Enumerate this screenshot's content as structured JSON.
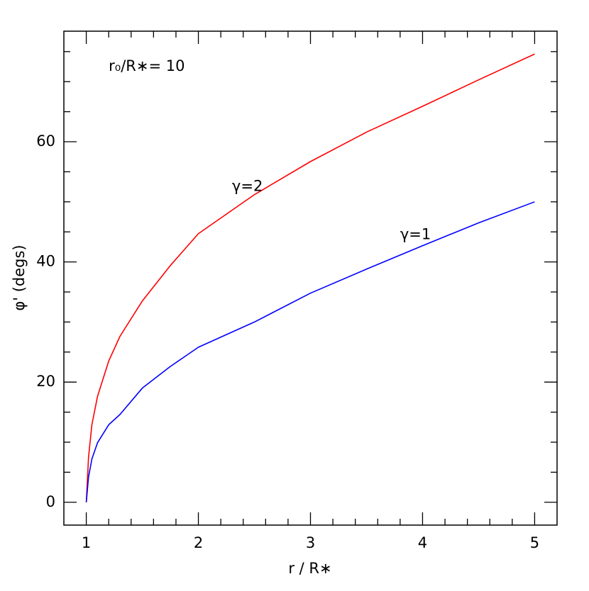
{
  "chart_data": {
    "type": "line",
    "x_label": "r / R∗",
    "y_label": "φ' (degs)",
    "annotations": [
      {
        "text": "r₀/R∗= 10",
        "x": 1.2,
        "y": 72.5,
        "color": "#000000"
      },
      {
        "text": "γ=2",
        "x": 2.3,
        "y": 52.5,
        "color": "#ff0000"
      },
      {
        "text": "γ=1",
        "x": 3.8,
        "y": 44.5,
        "color": "#0000ff"
      }
    ],
    "x": [
      1,
      1.02,
      1.05,
      1.1,
      1.2,
      1.3,
      1.5,
      1.75,
      2,
      2.5,
      3,
      3.5,
      4,
      4.5,
      5
    ],
    "series": [
      {
        "name": "γ=2",
        "color": "#ff0000",
        "values": [
          0,
          7.5,
          12.9,
          17.6,
          23.5,
          27.6,
          33.5,
          39.4,
          44.7,
          51.2,
          56.7,
          61.6,
          65.9,
          70.3,
          74.6
        ]
      },
      {
        "name": "γ=1",
        "color": "#0000ff",
        "values": [
          0,
          4.2,
          7.2,
          9.9,
          12.9,
          14.6,
          19,
          22.6,
          25.8,
          30,
          34.8,
          38.8,
          42.7,
          46.5,
          50
        ]
      }
    ],
    "xlim": [
      0.8,
      5.2
    ],
    "ylim": [
      -3.8,
      78.4
    ],
    "xticks": [
      1,
      2,
      3,
      4,
      5
    ],
    "yticks": [
      0,
      20,
      40,
      60
    ],
    "xminorticks": [
      1.2,
      1.4,
      1.6,
      1.8,
      2.2,
      2.4,
      2.6,
      2.8,
      3.2,
      3.4,
      3.6,
      3.8,
      4.2,
      4.4,
      4.6,
      4.8
    ],
    "yminorticks": [
      5,
      10,
      15,
      25,
      30,
      35,
      45,
      50,
      55,
      65,
      70,
      75
    ]
  }
}
